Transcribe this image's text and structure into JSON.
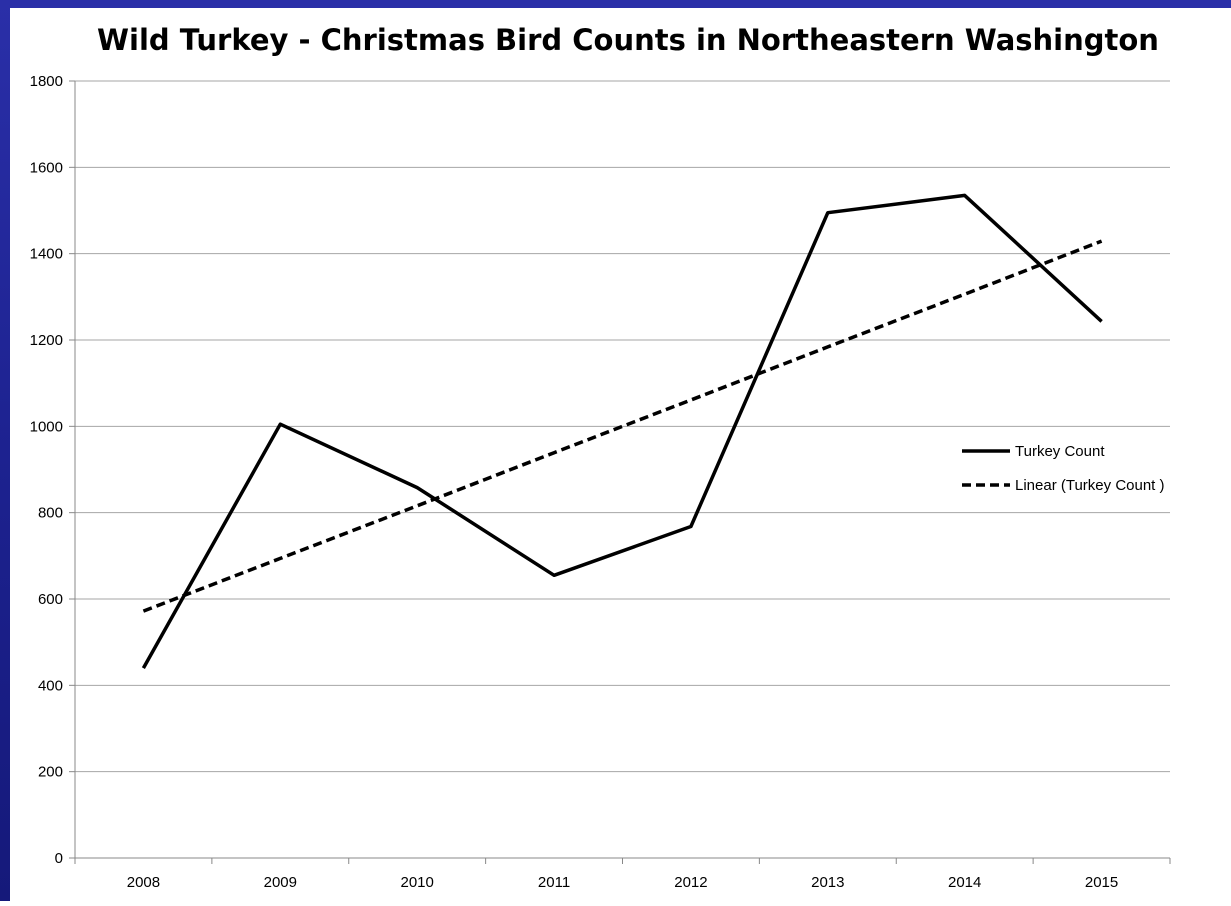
{
  "chart_data": {
    "type": "line",
    "title": "Wild Turkey - Christmas Bird Counts in Northeastern Washington",
    "xlabel": "",
    "ylabel": "",
    "categories": [
      "2008",
      "2009",
      "2010",
      "2011",
      "2012",
      "2013",
      "2014",
      "2015"
    ],
    "ylim": [
      0,
      1800
    ],
    "yticks": [
      0,
      200,
      400,
      600,
      800,
      1000,
      1200,
      1400,
      1600,
      1800
    ],
    "grid": true,
    "legend_position": "right",
    "series": [
      {
        "name": "Turkey Count",
        "style": "solid",
        "color": "#000000",
        "values": [
          440,
          1005,
          858,
          655,
          768,
          1495,
          1535,
          1243
        ]
      },
      {
        "name": "Linear (Turkey Count )",
        "style": "dashed",
        "color": "#000000",
        "values": [
          572,
          694,
          816,
          939,
          1061,
          1184,
          1306,
          1429
        ]
      }
    ]
  },
  "colors": {
    "border": "#1d2290",
    "grid": "#a6a6a6",
    "line": "#000000"
  }
}
